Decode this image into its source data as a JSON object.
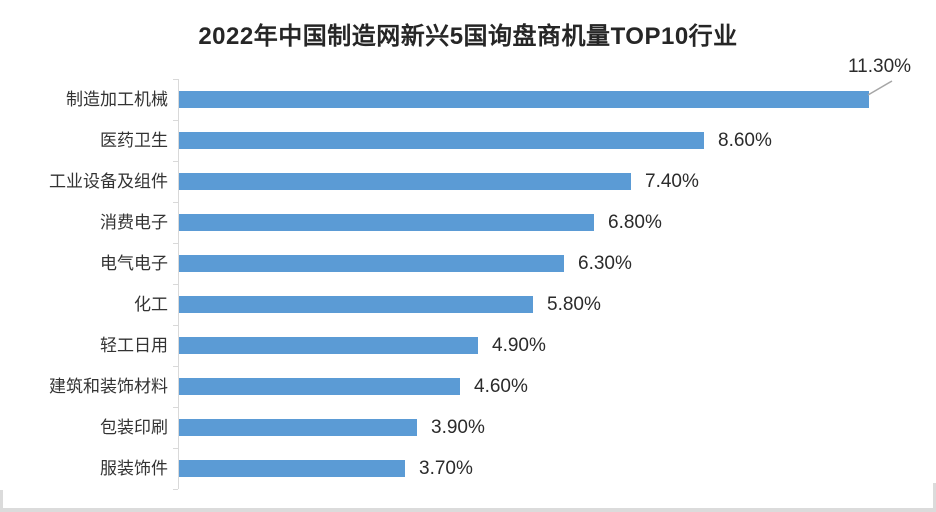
{
  "chart_data": {
    "type": "bar",
    "orientation": "horizontal",
    "title_full": "2022年中国制造网新兴5国询盘商机量TOP10行业",
    "title_prefix": "2022年中国制造网新兴5国询盘商机量",
    "title_bold": "TOP10",
    "title_suffix": "行业",
    "categories": [
      "制造加工机械",
      "医药卫生",
      "工业设备及组件",
      "消费电子",
      "电气电子",
      "化工",
      "轻工日用",
      "建筑和装饰材料",
      "包装印刷",
      "服装饰件"
    ],
    "values": [
      11.3,
      8.6,
      7.4,
      6.8,
      6.3,
      5.8,
      4.9,
      4.6,
      3.9,
      3.7
    ],
    "labels": [
      "11.30%",
      "8.60%",
      "7.40%",
      "6.80%",
      "6.30%",
      "5.80%",
      "4.90%",
      "4.60%",
      "3.90%",
      "3.70%"
    ],
    "xlim": [
      0,
      11.3
    ],
    "gridlines": false,
    "legend": "none",
    "first_value_shown_as_callout": true,
    "colors": {
      "bar": "#5B9BD5",
      "axis": "#D9D9D9",
      "leader_line": "#A6A6A6",
      "title_text": "#262626",
      "label_text": "#2B2B2B"
    }
  }
}
